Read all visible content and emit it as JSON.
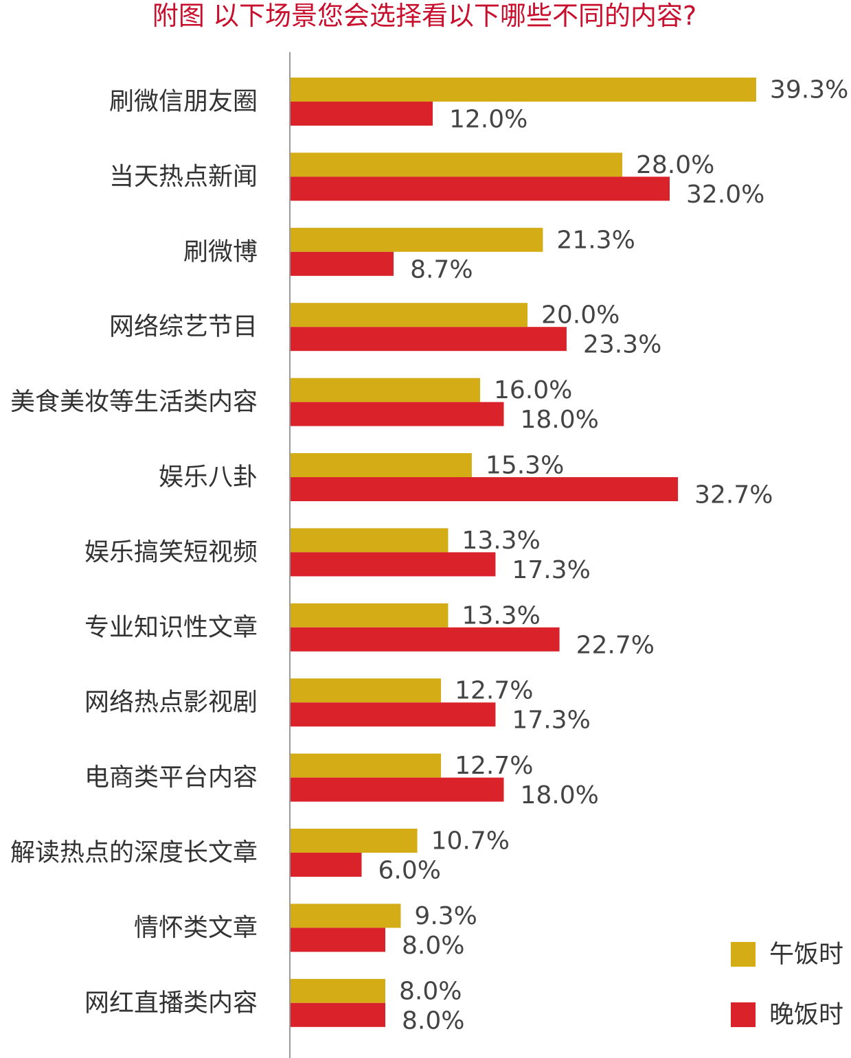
{
  "chart_data": {
    "type": "bar",
    "orientation": "horizontal",
    "title": "附图  以下场景您会选择看以下哪些不同的内容?",
    "categories": [
      "刷微信朋友圈",
      "当天热点新闻",
      "刷微博",
      "网络综艺节目",
      "美食美妆等生活类内容",
      "娱乐八卦",
      "娱乐搞笑短视频",
      "专业知识性文章",
      "网络热点影视剧",
      "电商类平台内容",
      "解读热点的深度长文章",
      "情怀类文章",
      "网红直播类内容"
    ],
    "series": [
      {
        "name": "午饭时",
        "color": "#d4ac16",
        "values": [
          39.3,
          28.0,
          21.3,
          20.0,
          16.0,
          15.3,
          13.3,
          13.3,
          12.7,
          12.7,
          10.7,
          9.3,
          8.0
        ],
        "labels": [
          "39.3%",
          "28.0%",
          "21.3%",
          "20.0%",
          "16.0%",
          "15.3%",
          "13.3%",
          "13.3%",
          "12.7%",
          "12.7%",
          "10.7%",
          "9.3%",
          "8.0%"
        ]
      },
      {
        "name": "晚饭时",
        "color": "#d9222a",
        "values": [
          12.0,
          32.0,
          8.7,
          23.3,
          18.0,
          32.7,
          17.3,
          22.7,
          17.3,
          18.0,
          6.0,
          8.0,
          8.0
        ],
        "labels": [
          "12.0%",
          "32.0%",
          "8.7%",
          "23.3%",
          "18.0%",
          "32.7%",
          "17.3%",
          "22.7%",
          "17.3%",
          "18.0%",
          "6.0%",
          "8.0%",
          "8.0%"
        ]
      }
    ],
    "legend_position": "bottom-right",
    "grid": false
  }
}
